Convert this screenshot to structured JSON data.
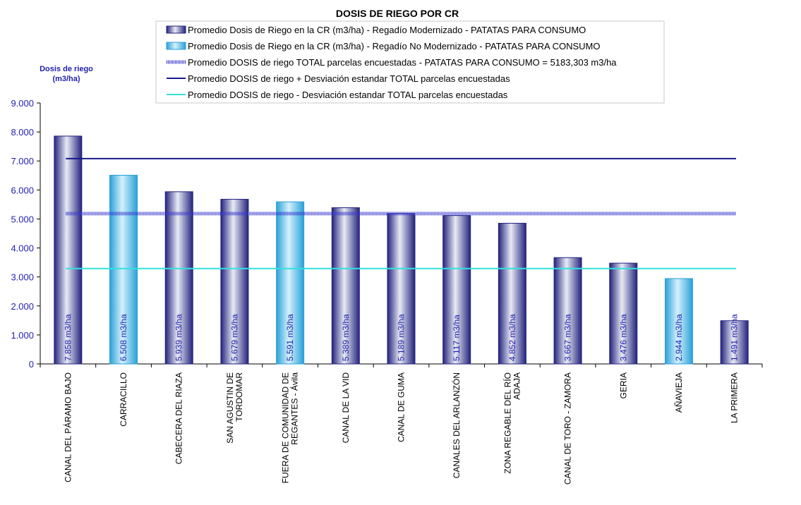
{
  "chart_data": {
    "type": "bar",
    "title": "DOSIS DE RIEGO POR CR",
    "ylabel_line1": "Dosis de riego",
    "ylabel_line2": "(m3/ha)",
    "ylim": [
      0,
      9000
    ],
    "yticks": [
      0,
      1000,
      2000,
      3000,
      4000,
      5000,
      6000,
      7000,
      8000,
      9000
    ],
    "ytick_labels": [
      "0",
      "1.000",
      "2.000",
      "3.000",
      "4.000",
      "5.000",
      "6.000",
      "7.000",
      "8.000",
      "9.000"
    ],
    "categories": [
      [
        "CANAL DEL PÁRAMO BAJO"
      ],
      [
        "CARRACILLO"
      ],
      [
        "CABECERA DEL RIAZA"
      ],
      [
        "SAN AGUSTIN DE",
        "TORDOMAR"
      ],
      [
        "FUERA DE COMUNIDAD DE",
        "REGANTES - Ávila"
      ],
      [
        "CANAL DE LA VID"
      ],
      [
        "CANAL DE GUMA"
      ],
      [
        "CANALES DEL ARLANZÓN"
      ],
      [
        "ZONA REGABLE DEL RÍO",
        "ADAJA"
      ],
      [
        "CANAL DE TORO - ZAMORA"
      ],
      [
        "GERIA"
      ],
      [
        "AÑAVIEJA"
      ],
      [
        "LA PRIMERA"
      ]
    ],
    "values": [
      7858,
      6508,
      5939,
      5679,
      5591,
      5389,
      5189,
      5117,
      4852,
      3667,
      3476,
      2944,
      1491
    ],
    "value_labels": [
      "7.858 m3/ha",
      "6.508 m3/ha",
      "5.939 m3/ha",
      "5.679 m3/ha",
      "5.591 m3/ha",
      "5.389 m3/ha",
      "5.189 m3/ha",
      "5.117 m3/ha",
      "4.852 m3/ha",
      "3.667 m3/ha",
      "3.476 m3/ha",
      "2.944 m3/ha",
      "1.491 m3/ha"
    ],
    "series_type": [
      "mod",
      "nomod",
      "mod",
      "mod",
      "nomod",
      "mod",
      "mod",
      "mod",
      "mod",
      "mod",
      "mod",
      "nomod",
      "mod"
    ],
    "reference_lines": [
      {
        "name": "Promedio DOSIS de riego TOTAL parcelas encuestadas - PATATAS PARA CONSUMO = 5183,303 m3/ha",
        "value": 5183.303,
        "color": "#3a3ad0",
        "style": "dotted-thick"
      },
      {
        "name": "Promedio DOSIS de riego + Desviación estandar TOTAL parcelas encuestadas",
        "value": 7080,
        "color": "#1a1a8c",
        "style": "solid"
      },
      {
        "name": "Promedio DOSIS de riego - Desviación estandar TOTAL parcelas encuestadas",
        "value": 3290,
        "color": "#33e0e0",
        "style": "solid"
      }
    ],
    "legend": [
      {
        "name": "Promedio Dosis de Riego en la CR (m3/ha) - Regadío Modernizado - PATATAS PARA CONSUMO",
        "kind": "bar-mod"
      },
      {
        "name": "Promedio Dosis de Riego en la CR (m3/ha) - Regadío No Modernizado - PATATAS PARA CONSUMO",
        "kind": "bar-nomod"
      }
    ],
    "colors": {
      "mod_dark": "#23237e",
      "mod_light": "#e8ebf4",
      "nomod_dark": "#2aa0d8",
      "nomod_light": "#d4f1fc",
      "axis": "#000000",
      "text_blue": "#1f1fb0"
    },
    "grid": false,
    "legend_position": "top"
  }
}
